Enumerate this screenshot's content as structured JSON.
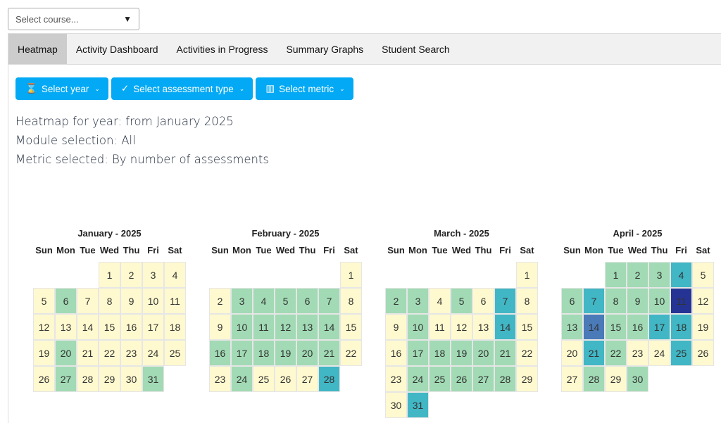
{
  "course_select": {
    "placeholder": "Select course...",
    "arrow": "▼"
  },
  "tabs": [
    {
      "label": "Heatmap",
      "active": true
    },
    {
      "label": "Activity Dashboard"
    },
    {
      "label": "Activities in Progress"
    },
    {
      "label": "Summary Graphs"
    },
    {
      "label": "Student Search"
    }
  ],
  "buttons": [
    {
      "label": "Select year",
      "icon": "hourglass-icon",
      "glyph": "⌛"
    },
    {
      "label": "Select assessment type",
      "icon": "check-icon",
      "glyph": "✓"
    },
    {
      "label": "Select metric",
      "icon": "bar-chart-icon",
      "glyph": "▥"
    }
  ],
  "chevron": "⌄",
  "info": {
    "year": "Heatmap for year: from January 2025",
    "module": "Module selection: All",
    "metric": "Metric selected: By number of assessments"
  },
  "colors": {
    "level0": "#fff9cf",
    "level1": "#a1dab4",
    "level2": "#41b6c4",
    "level3": "#4a7ab8",
    "level4": "#253494",
    "accent": "#03a9f4"
  },
  "weekdays": [
    "Sun",
    "Mon",
    "Tue",
    "Wed",
    "Thu",
    "Fri",
    "Sat"
  ],
  "months": [
    {
      "title": "January - 2025",
      "start_weekday": 3,
      "levels": [
        0,
        0,
        0,
        0,
        0,
        1,
        0,
        0,
        0,
        0,
        0,
        0,
        0,
        0,
        0,
        0,
        0,
        0,
        0,
        1,
        0,
        0,
        0,
        0,
        0,
        0,
        1,
        0,
        0,
        0,
        1
      ]
    },
    {
      "title": "February - 2025",
      "start_weekday": 6,
      "levels": [
        0,
        0,
        1,
        1,
        1,
        1,
        1,
        0,
        0,
        1,
        1,
        1,
        1,
        1,
        0,
        1,
        1,
        1,
        1,
        1,
        1,
        0,
        0,
        1,
        0,
        0,
        0,
        2
      ]
    },
    {
      "title": "March - 2025",
      "start_weekday": 6,
      "levels": [
        0,
        1,
        1,
        0,
        1,
        0,
        2,
        0,
        0,
        1,
        0,
        0,
        0,
        2,
        0,
        0,
        1,
        1,
        1,
        1,
        1,
        0,
        0,
        1,
        1,
        1,
        1,
        1,
        0,
        0,
        2
      ]
    },
    {
      "title": "April - 2025",
      "start_weekday": 2,
      "levels": [
        1,
        1,
        1,
        2,
        0,
        1,
        2,
        1,
        1,
        1,
        4,
        0,
        1,
        3,
        1,
        1,
        2,
        2,
        0,
        0,
        2,
        1,
        0,
        0,
        2,
        0,
        0,
        1,
        0,
        1
      ]
    }
  ]
}
